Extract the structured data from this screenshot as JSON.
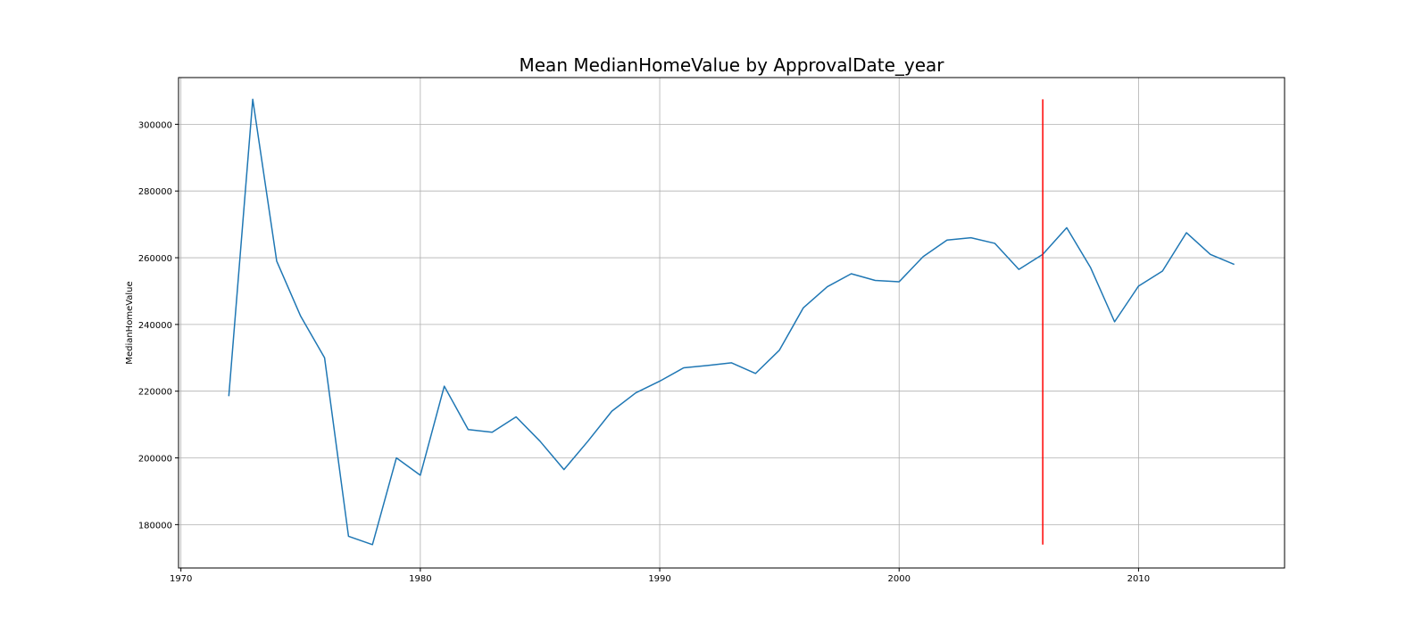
{
  "chart_data": {
    "type": "line",
    "title": "Mean MedianHomeValue by ApprovalDate_year",
    "xlabel": "",
    "ylabel": "MedianHomeValue",
    "xlim": [
      1969.9,
      2016.1
    ],
    "ylim": [
      167000,
      314000
    ],
    "xticks": [
      1970,
      1980,
      1990,
      2000,
      2010
    ],
    "yticks": [
      180000,
      200000,
      220000,
      240000,
      260000,
      280000,
      300000
    ],
    "grid": true,
    "series": [
      {
        "color": "#1f77b4",
        "x": [
          1972,
          1973,
          1974,
          1975,
          1976,
          1977,
          1978,
          1979,
          1980,
          1981,
          1982,
          1983,
          1984,
          1985,
          1986,
          1987,
          1988,
          1989,
          1990,
          1991,
          1992,
          1993,
          1994,
          1995,
          1996,
          1997,
          1998,
          1999,
          2000,
          2001,
          2002,
          2003,
          2004,
          2005,
          2006,
          2007,
          2008,
          2009,
          2010,
          2011,
          2012,
          2013,
          2014
        ],
        "values": [
          218500,
          307500,
          259000,
          242500,
          230000,
          176500,
          174000,
          200000,
          194800,
          221500,
          208500,
          207700,
          212300,
          205000,
          196500,
          205000,
          214000,
          219500,
          223000,
          227000,
          227700,
          228500,
          225300,
          232300,
          245000,
          251300,
          255200,
          253200,
          252800,
          260300,
          265300,
          266000,
          264300,
          256500,
          261000,
          269000,
          257000,
          240800,
          251500,
          256000,
          267500,
          261000,
          258000
        ]
      }
    ],
    "vline": {
      "x": 2006,
      "ymin": 174000,
      "ymax": 307500,
      "color": "#ff0000"
    }
  }
}
